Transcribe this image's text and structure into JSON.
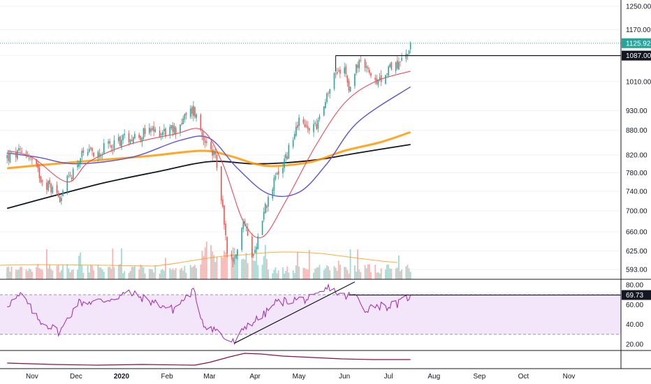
{
  "chart_data": {
    "type": "candlestick",
    "price_axis": {
      "scale": "log",
      "ticks": [
        "1250.00",
        "1170.00",
        "1087.00",
        "1010.00",
        "930.00",
        "880.00",
        "820.00",
        "780.00",
        "740.00",
        "700.00",
        "660.00",
        "625.00",
        "593.00"
      ],
      "last_price": "1125.92",
      "resistance_level": "1087.00"
    },
    "time_axis": {
      "labels": [
        "Nov",
        "Dec",
        "2020",
        "Feb",
        "Mar",
        "Apr",
        "May",
        "Jun",
        "Jul",
        "Aug",
        "Sep",
        "Oct",
        "Nov"
      ]
    },
    "rsi_axis": {
      "ticks": [
        "80.00",
        "60.00",
        "40.00",
        "20.00"
      ],
      "current": "69.73",
      "overbought": 70,
      "oversold": 30
    },
    "colors": {
      "up": "#26a69a",
      "down": "#ef5350",
      "ema20": "#f23645",
      "ema50": "#5b50d6",
      "sma100": "#ff9800",
      "sma200": "#131722",
      "rsi": "#9c27b0",
      "rsi_band": "#f3e5fa",
      "last_price": "#26a69a",
      "bottom_indicator": "#880e4f"
    },
    "close_anchors": [
      {
        "t": "2019-10-15",
        "v": 815
      },
      {
        "t": "2019-10-28",
        "v": 828
      },
      {
        "t": "2019-11-08",
        "v": 765
      },
      {
        "t": "2019-11-20",
        "v": 730
      },
      {
        "t": "2019-12-04",
        "v": 815
      },
      {
        "t": "2019-12-18",
        "v": 830
      },
      {
        "t": "2020-01-02",
        "v": 860
      },
      {
        "t": "2020-01-21",
        "v": 875
      },
      {
        "t": "2020-02-06",
        "v": 880
      },
      {
        "t": "2020-02-19",
        "v": 935
      },
      {
        "t": "2020-02-27",
        "v": 850
      },
      {
        "t": "2020-03-05",
        "v": 810
      },
      {
        "t": "2020-03-09",
        "v": 720
      },
      {
        "t": "2020-03-13",
        "v": 630
      },
      {
        "t": "2020-03-18",
        "v": 600
      },
      {
        "t": "2020-03-24",
        "v": 680
      },
      {
        "t": "2020-03-31",
        "v": 615
      },
      {
        "t": "2020-04-07",
        "v": 700
      },
      {
        "t": "2020-04-16",
        "v": 775
      },
      {
        "t": "2020-04-23",
        "v": 820
      },
      {
        "t": "2020-04-30",
        "v": 900
      },
      {
        "t": "2020-05-07",
        "v": 880
      },
      {
        "t": "2020-05-14",
        "v": 900
      },
      {
        "t": "2020-05-20",
        "v": 965
      },
      {
        "t": "2020-05-27",
        "v": 1040
      },
      {
        "t": "2020-06-01",
        "v": 1065
      },
      {
        "t": "2020-06-04",
        "v": 1000
      },
      {
        "t": "2020-06-10",
        "v": 1060
      },
      {
        "t": "2020-06-17",
        "v": 1050
      },
      {
        "t": "2020-06-23",
        "v": 990
      },
      {
        "t": "2020-06-29",
        "v": 1045
      },
      {
        "t": "2020-07-06",
        "v": 1060
      },
      {
        "t": "2020-07-13",
        "v": 1085
      },
      {
        "t": "2020-07-16",
        "v": 1126
      }
    ],
    "ema20_anchors": [
      {
        "t": "2019-10-15",
        "v": 830
      },
      {
        "t": "2019-11-01",
        "v": 815
      },
      {
        "t": "2019-11-25",
        "v": 760
      },
      {
        "t": "2019-12-10",
        "v": 805
      },
      {
        "t": "2020-01-06",
        "v": 845
      },
      {
        "t": "2020-02-06",
        "v": 870
      },
      {
        "t": "2020-02-25",
        "v": 880
      },
      {
        "t": "2020-03-10",
        "v": 800
      },
      {
        "t": "2020-03-24",
        "v": 680
      },
      {
        "t": "2020-04-06",
        "v": 650
      },
      {
        "t": "2020-04-22",
        "v": 720
      },
      {
        "t": "2020-05-12",
        "v": 840
      },
      {
        "t": "2020-06-01",
        "v": 950
      },
      {
        "t": "2020-06-22",
        "v": 1010
      },
      {
        "t": "2020-07-16",
        "v": 1040
      }
    ],
    "ema50_anchors": [
      {
        "t": "2019-10-15",
        "v": 825
      },
      {
        "t": "2019-11-05",
        "v": 815
      },
      {
        "t": "2019-12-01",
        "v": 800
      },
      {
        "t": "2020-01-08",
        "v": 815
      },
      {
        "t": "2020-02-10",
        "v": 855
      },
      {
        "t": "2020-03-01",
        "v": 860
      },
      {
        "t": "2020-03-20",
        "v": 790
      },
      {
        "t": "2020-04-10",
        "v": 735
      },
      {
        "t": "2020-05-01",
        "v": 738
      },
      {
        "t": "2020-05-20",
        "v": 800
      },
      {
        "t": "2020-06-10",
        "v": 900
      },
      {
        "t": "2020-07-16",
        "v": 995
      }
    ],
    "sma100_anchors": [
      {
        "t": "2019-10-15",
        "v": 790
      },
      {
        "t": "2019-11-10",
        "v": 798
      },
      {
        "t": "2019-12-15",
        "v": 808
      },
      {
        "t": "2020-01-20",
        "v": 818
      },
      {
        "t": "2020-02-25",
        "v": 830
      },
      {
        "t": "2020-03-15",
        "v": 818
      },
      {
        "t": "2020-04-01",
        "v": 800
      },
      {
        "t": "2020-04-15",
        "v": 795
      },
      {
        "t": "2020-05-10",
        "v": 805
      },
      {
        "t": "2020-06-01",
        "v": 830
      },
      {
        "t": "2020-06-25",
        "v": 850
      },
      {
        "t": "2020-07-16",
        "v": 875
      }
    ],
    "sma200_anchors": [
      {
        "t": "2019-10-15",
        "v": 705
      },
      {
        "t": "2019-11-15",
        "v": 730
      },
      {
        "t": "2019-12-20",
        "v": 758
      },
      {
        "t": "2020-01-25",
        "v": 782
      },
      {
        "t": "2020-03-01",
        "v": 805
      },
      {
        "t": "2020-03-30",
        "v": 800
      },
      {
        "t": "2020-04-20",
        "v": 802
      },
      {
        "t": "2020-05-15",
        "v": 810
      },
      {
        "t": "2020-06-10",
        "v": 825
      },
      {
        "t": "2020-07-16",
        "v": 845
      }
    ],
    "rsi_anchors": [
      {
        "t": "2019-10-15",
        "v": 60
      },
      {
        "t": "2019-10-25",
        "v": 70
      },
      {
        "t": "2019-11-05",
        "v": 45
      },
      {
        "t": "2019-11-20",
        "v": 32
      },
      {
        "t": "2019-12-02",
        "v": 62
      },
      {
        "t": "2019-12-20",
        "v": 64
      },
      {
        "t": "2020-01-06",
        "v": 72
      },
      {
        "t": "2020-01-20",
        "v": 64
      },
      {
        "t": "2020-02-05",
        "v": 55
      },
      {
        "t": "2020-02-19",
        "v": 74
      },
      {
        "t": "2020-02-26",
        "v": 40
      },
      {
        "t": "2020-03-05",
        "v": 35
      },
      {
        "t": "2020-03-12",
        "v": 25
      },
      {
        "t": "2020-03-19",
        "v": 21
      },
      {
        "t": "2020-03-25",
        "v": 38
      },
      {
        "t": "2020-04-06",
        "v": 48
      },
      {
        "t": "2020-04-15",
        "v": 62
      },
      {
        "t": "2020-04-28",
        "v": 65
      },
      {
        "t": "2020-05-11",
        "v": 66
      },
      {
        "t": "2020-05-22",
        "v": 78
      },
      {
        "t": "2020-05-30",
        "v": 68
      },
      {
        "t": "2020-06-08",
        "v": 70
      },
      {
        "t": "2020-06-15",
        "v": 55
      },
      {
        "t": "2020-06-22",
        "v": 60
      },
      {
        "t": "2020-06-29",
        "v": 58
      },
      {
        "t": "2020-07-08",
        "v": 61
      },
      {
        "t": "2020-07-16",
        "v": 69.73
      }
    ]
  }
}
